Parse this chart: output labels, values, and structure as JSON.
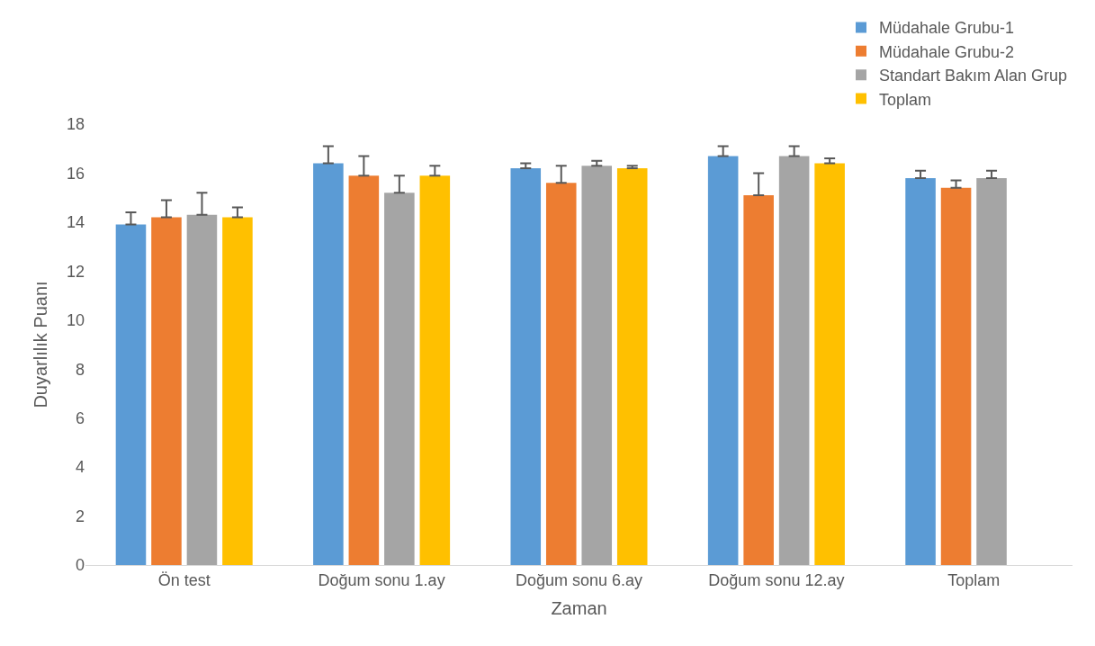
{
  "chart_data": {
    "type": "bar",
    "xlabel": "Zaman",
    "ylabel": "Duyarlılık Puanı",
    "categories": [
      "Ön test",
      "Doğum sonu 1.ay",
      "Doğum sonu 6.ay",
      "Doğum sonu 12.ay",
      "Toplam"
    ],
    "series": [
      {
        "name": "Müdahale Grubu-1",
        "color": "#5b9bd5",
        "values": [
          13.9,
          16.4,
          16.2,
          16.7,
          15.8
        ],
        "errors": [
          [
            13.9,
            14.4
          ],
          [
            16.4,
            17.1
          ],
          [
            16.2,
            16.4
          ],
          [
            16.7,
            17.1
          ],
          [
            15.8,
            16.1
          ]
        ]
      },
      {
        "name": "Müdahale Grubu-2",
        "color": "#ed7d31",
        "values": [
          14.2,
          15.9,
          15.6,
          15.1,
          15.4
        ],
        "errors": [
          [
            14.2,
            14.9
          ],
          [
            15.9,
            16.7
          ],
          [
            15.6,
            16.3
          ],
          [
            15.1,
            16.0
          ],
          [
            15.4,
            15.7
          ]
        ]
      },
      {
        "name": "Standart Bakım Alan Grup",
        "color": "#a5a5a5",
        "values": [
          14.3,
          15.2,
          16.3,
          16.7,
          15.8
        ],
        "errors": [
          [
            14.3,
            15.2
          ],
          [
            15.2,
            15.9
          ],
          [
            16.3,
            16.5
          ],
          [
            16.7,
            17.1
          ],
          [
            15.8,
            16.1
          ]
        ]
      },
      {
        "name": "Toplam",
        "color": "#ffc000",
        "values": [
          14.2,
          15.9,
          16.2,
          16.4,
          null
        ],
        "errors": [
          [
            14.2,
            14.6
          ],
          [
            15.9,
            16.3
          ],
          [
            16.2,
            16.3
          ],
          [
            16.4,
            16.6
          ],
          null
        ]
      }
    ],
    "ylim": [
      0,
      18
    ],
    "yticks": [
      0,
      2,
      4,
      6,
      8,
      10,
      12,
      14,
      16,
      18
    ],
    "grid": false,
    "legend": "top right"
  }
}
